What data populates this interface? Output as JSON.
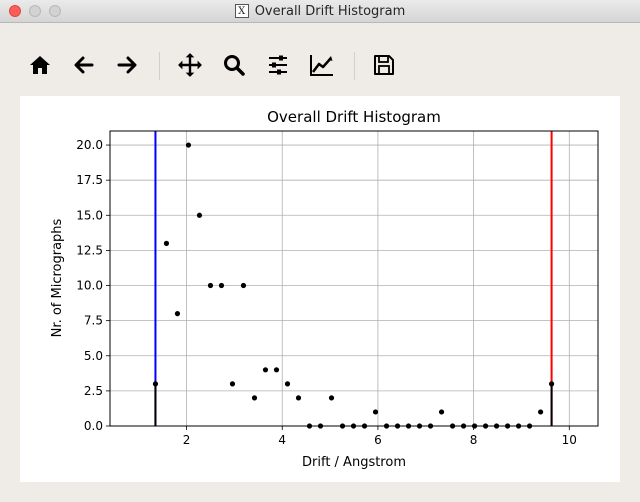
{
  "window": {
    "title": "Overall Drift Histogram",
    "x_badge": "X"
  },
  "toolbar": {
    "buttons": [
      {
        "name": "home-button",
        "icon": "home-icon"
      },
      {
        "name": "back-button",
        "icon": "arrow-left-icon"
      },
      {
        "name": "forward-button",
        "icon": "arrow-right-icon"
      },
      {
        "name": "pan-button",
        "icon": "move-icon"
      },
      {
        "name": "zoom-button",
        "icon": "magnifier-icon"
      },
      {
        "name": "configure-subplots-button",
        "icon": "sliders-icon"
      },
      {
        "name": "edit-axis-button",
        "icon": "line-chart-icon"
      },
      {
        "name": "save-button",
        "icon": "floppy-disk-icon"
      }
    ]
  },
  "chart_data": {
    "type": "scatter",
    "title": "Overall Drift Histogram",
    "xlabel": "Drift / Angstrom",
    "ylabel": "Nr. of Micrographs",
    "xlim": [
      0.4,
      10.6
    ],
    "ylim": [
      0,
      21
    ],
    "xticks": [
      2,
      4,
      6,
      8,
      10
    ],
    "xtick_labels": [
      "2",
      "4",
      "6",
      "8",
      "10"
    ],
    "yticks": [
      0,
      2.5,
      5,
      7.5,
      10,
      12.5,
      15,
      17.5,
      20
    ],
    "ytick_labels": [
      "0.0",
      "2.5",
      "5.0",
      "7.5",
      "10.0",
      "12.5",
      "15.0",
      "17.5",
      "20.0"
    ],
    "grid": true,
    "point_color": "#000000",
    "x": [
      1.35,
      1.58,
      1.81,
      2.04,
      2.27,
      2.5,
      2.73,
      2.96,
      3.19,
      3.42,
      3.65,
      3.88,
      4.11,
      4.34,
      4.57,
      4.8,
      5.03,
      5.26,
      5.49,
      5.72,
      5.95,
      6.18,
      6.41,
      6.64,
      6.87,
      7.1,
      7.33,
      7.56,
      7.79,
      8.02,
      8.25,
      8.48,
      8.71,
      8.94,
      9.17,
      9.4,
      9.63
    ],
    "y": [
      3,
      13,
      8,
      20,
      15,
      10,
      10,
      3,
      10,
      2,
      4,
      4,
      3,
      2,
      0,
      0,
      2,
      0,
      0,
      0,
      1,
      0,
      0,
      0,
      0,
      0,
      1,
      0,
      0,
      0,
      0,
      0,
      0,
      0,
      0,
      1,
      3
    ],
    "threshold_lines": [
      {
        "x": 1.35,
        "color": "#0000ff"
      },
      {
        "x": 9.63,
        "color": "#ff0000"
      }
    ],
    "stems": [
      {
        "x": 1.35,
        "y": 3
      },
      {
        "x": 9.63,
        "y": 3
      }
    ]
  }
}
